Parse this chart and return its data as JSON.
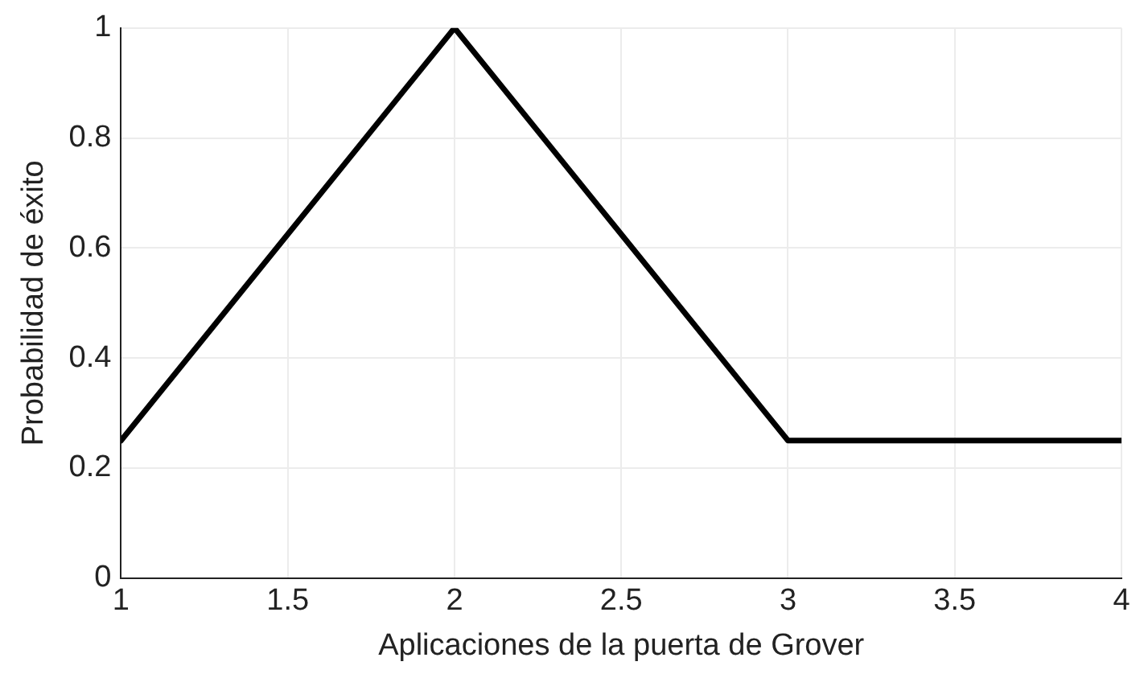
{
  "chart_data": {
    "type": "line",
    "xlabel": "Aplicaciones de la puerta de Grover",
    "ylabel": "Probabilidad de éxito",
    "x": [
      1,
      2,
      3,
      4
    ],
    "series": [
      {
        "color": "#000000",
        "values": [
          0.25,
          1,
          0.25,
          0.25
        ]
      }
    ],
    "xlim": [
      1,
      4
    ],
    "xticks": [
      1,
      1.5,
      2,
      2.5,
      3,
      3.5,
      4
    ],
    "ylim": [
      0,
      1
    ],
    "yticks": [
      0,
      0.2,
      0.4,
      0.6,
      0.8,
      1
    ],
    "grid": true,
    "legend": false,
    "marker": "none",
    "line_style": "solid"
  }
}
